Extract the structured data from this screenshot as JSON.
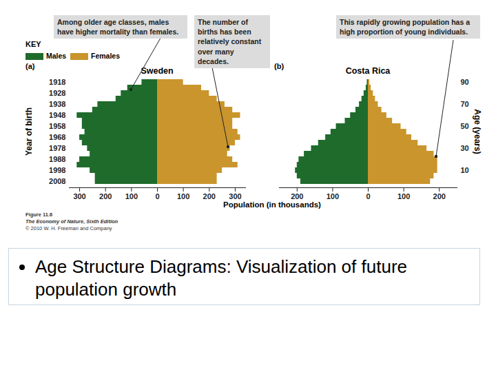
{
  "chart_data": [
    {
      "type": "bar",
      "orientation": "horizontal",
      "title": "Sweden",
      "panel_label": "(a)",
      "ylabel": "Year of birth",
      "categories": [
        "1918",
        null,
        "1928",
        null,
        "1938",
        null,
        "1948",
        null,
        "1958",
        null,
        "1968",
        null,
        "1978",
        null,
        "1988",
        null,
        "1998",
        null,
        "2008"
      ],
      "series": [
        {
          "name": "Males",
          "color": "#1f6b2c",
          "values": [
            60,
            115,
            140,
            160,
            230,
            250,
            310,
            290,
            290,
            280,
            300,
            290,
            270,
            260,
            300,
            310,
            260,
            240,
            240
          ]
        },
        {
          "name": "Females",
          "color": "#c9952c",
          "values": [
            100,
            170,
            200,
            230,
            260,
            290,
            320,
            290,
            290,
            310,
            320,
            300,
            280,
            270,
            290,
            310,
            250,
            230,
            230
          ]
        }
      ],
      "xlim": [
        0,
        340
      ],
      "xticks": [
        0,
        100,
        200,
        300
      ]
    },
    {
      "type": "bar",
      "orientation": "horizontal",
      "title": "Costa Rica",
      "panel_label": "(b)",
      "ylabel": "Age (years)",
      "categories": [
        "90",
        null,
        null,
        null,
        "70",
        null,
        null,
        null,
        "50",
        null,
        null,
        null,
        "30",
        null,
        null,
        null,
        "10",
        null,
        null
      ],
      "series": [
        {
          "name": "Males",
          "color": "#1f6b2c",
          "values": [
            3,
            6,
            12,
            18,
            25,
            35,
            50,
            65,
            90,
            105,
            120,
            140,
            160,
            180,
            195,
            200,
            205,
            200,
            190
          ]
        },
        {
          "name": "Females",
          "color": "#c9952c",
          "values": [
            4,
            8,
            14,
            20,
            28,
            38,
            52,
            68,
            92,
            108,
            122,
            140,
            165,
            185,
            195,
            195,
            195,
            185,
            175
          ]
        }
      ],
      "xlim": [
        0,
        250
      ],
      "xticks": [
        0,
        100,
        200
      ]
    }
  ],
  "key_title": "KEY",
  "x_label": "Population (in thousands)",
  "annotations": [
    "Among older age classes, males have higher mortality than females.",
    "The number of births has been relatively constant over many decades.",
    "This rapidly growing population has a high proportion of young individuals."
  ],
  "caption": {
    "figure": "Figure 11.6",
    "book": "The Economy of Nature, Sixth Edition",
    "copyright": "© 2010 W. H. Freeman and Company"
  },
  "bullet": "Age Structure Diagrams: Visualization of future population growth"
}
